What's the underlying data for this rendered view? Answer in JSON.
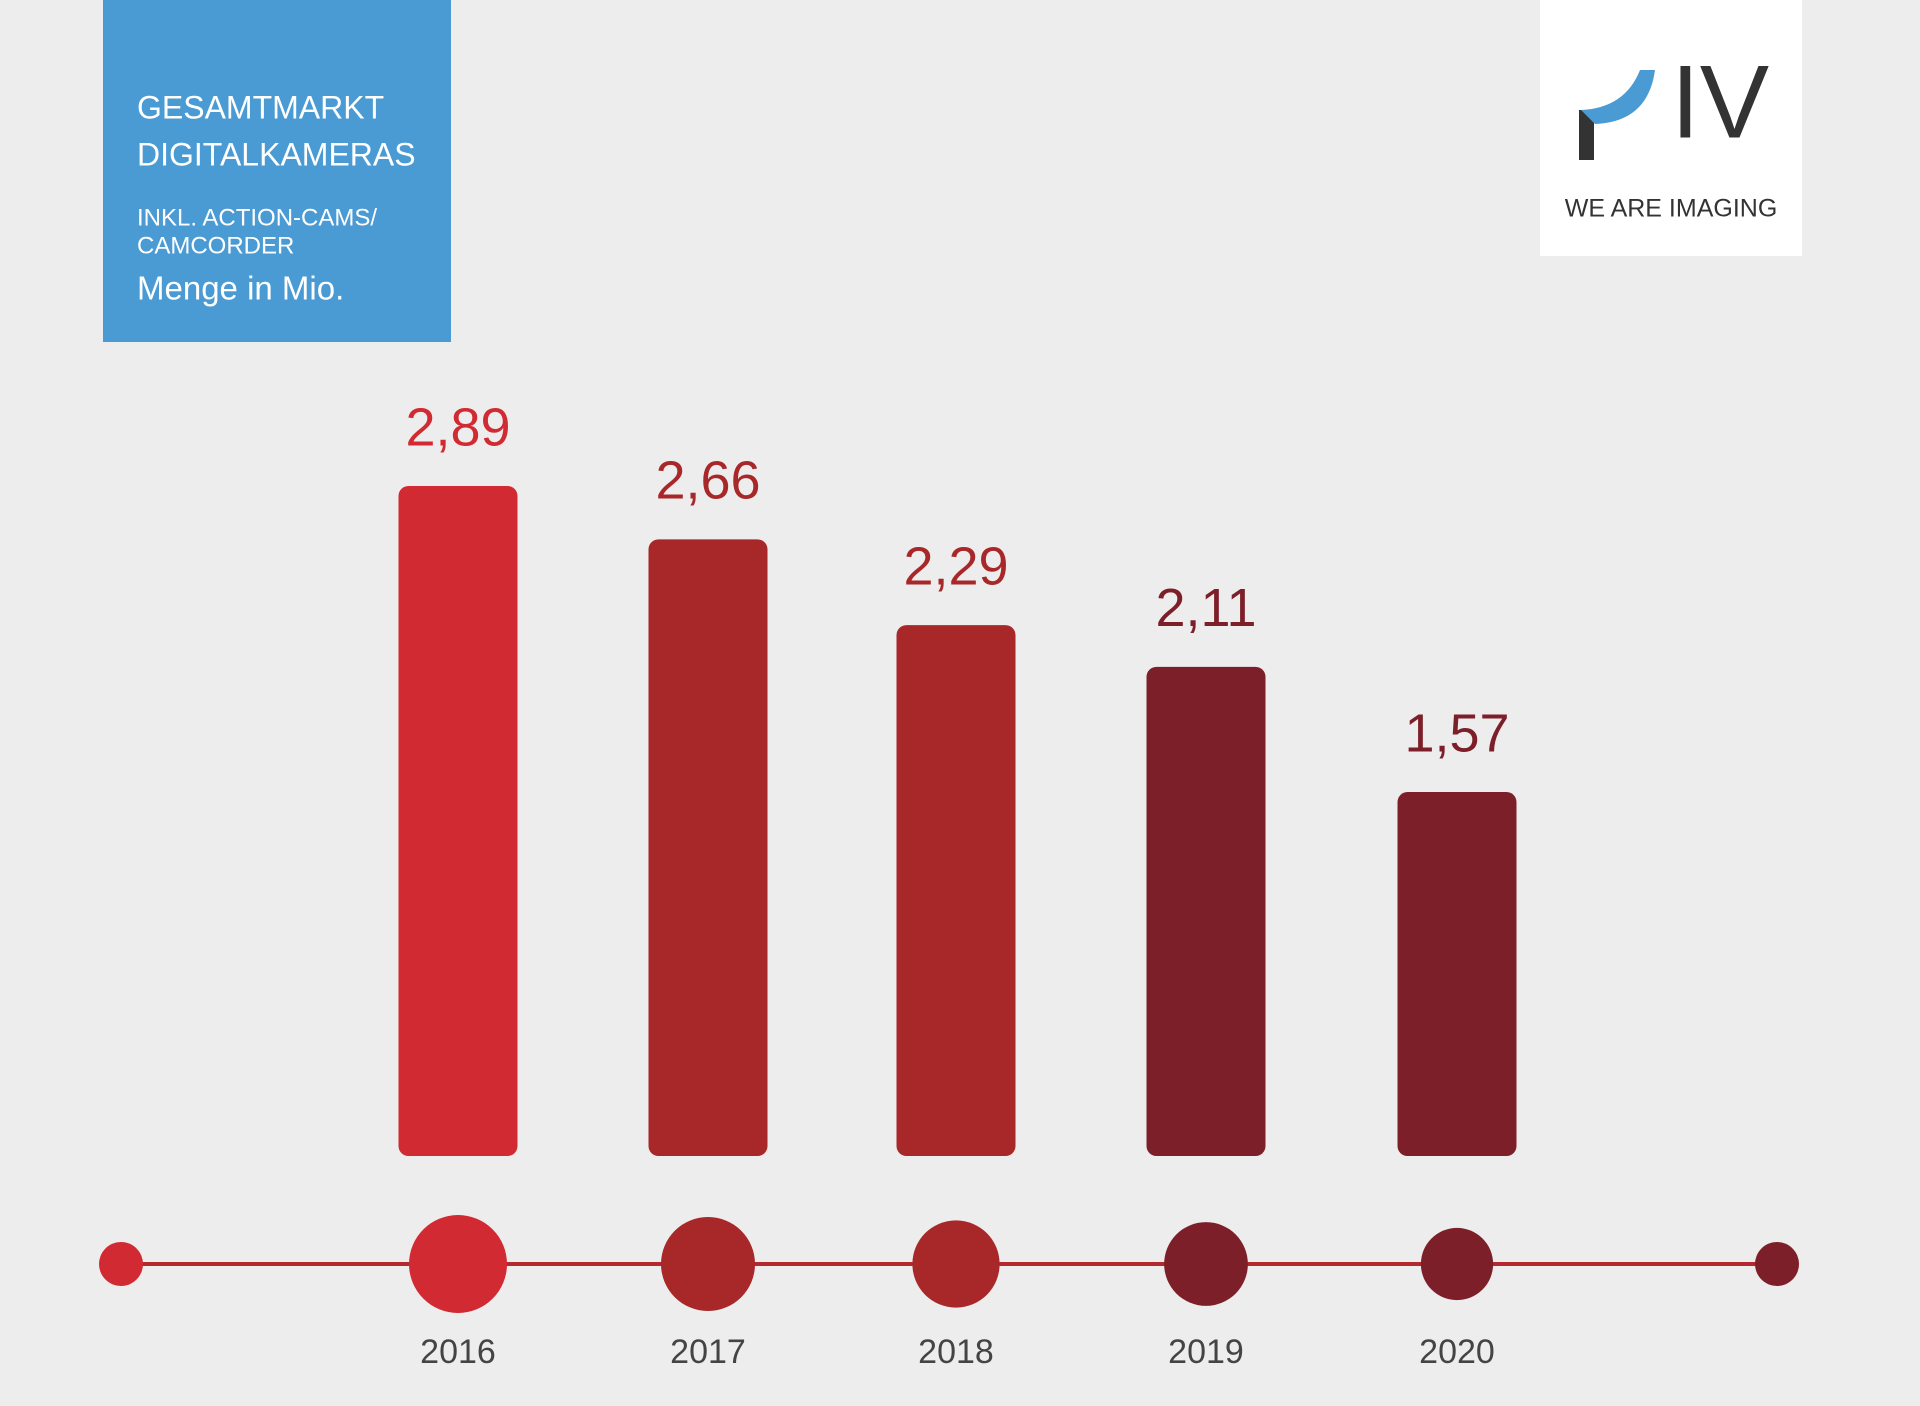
{
  "chart_data": {
    "type": "bar",
    "title": [
      "GESAMTMARKT",
      "DIGITALKAMERAS"
    ],
    "subtitle": [
      "INKL. ACTION-CAMS/",
      "CAMCORDER"
    ],
    "unit_label": "Menge in Mio.",
    "logo": {
      "mark": "IV",
      "tagline": "WE ARE IMAGING"
    },
    "categories": [
      "2016",
      "2017",
      "2018",
      "2019",
      "2020"
    ],
    "values": [
      2.89,
      2.66,
      2.29,
      2.11,
      1.57
    ],
    "value_labels": [
      "2,89",
      "2,66",
      "2,29",
      "2,11",
      "1,57"
    ],
    "colors": [
      "#d12a32",
      "#a8282a",
      "#a8282a",
      "#7d1f29",
      "#7d1f29"
    ]
  }
}
